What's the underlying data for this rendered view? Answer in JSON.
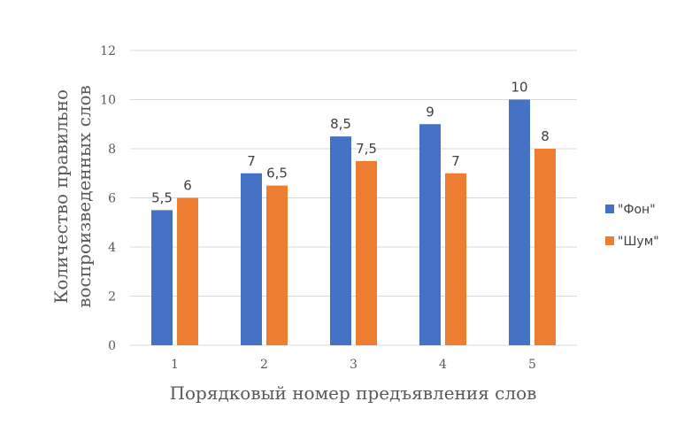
{
  "chart_data": {
    "type": "bar",
    "categories": [
      "1",
      "2",
      "3",
      "4",
      "5"
    ],
    "series": [
      {
        "name": "\"Фон\"",
        "values": [
          5.5,
          7,
          8.5,
          9,
          10
        ],
        "labels": [
          "5,5",
          "7",
          "8,5",
          "9",
          "10"
        ],
        "color": "#4472C4"
      },
      {
        "name": "\"Шум\"",
        "values": [
          6,
          6.5,
          7.5,
          7,
          8
        ],
        "labels": [
          "6",
          "6,5",
          "7,5",
          "7",
          "8"
        ],
        "color": "#ED7D31"
      }
    ],
    "xlabel": "Порядковый номер предъявления слов",
    "ylabel": [
      "Количество правильно",
      "воспроизведенных слов"
    ],
    "ylim": [
      0,
      12
    ],
    "yticks": [
      "0",
      "2",
      "4",
      "6",
      "8",
      "10",
      "12"
    ],
    "grid": true,
    "legend_position": "right",
    "gridline_color": "#D9D9D9"
  }
}
